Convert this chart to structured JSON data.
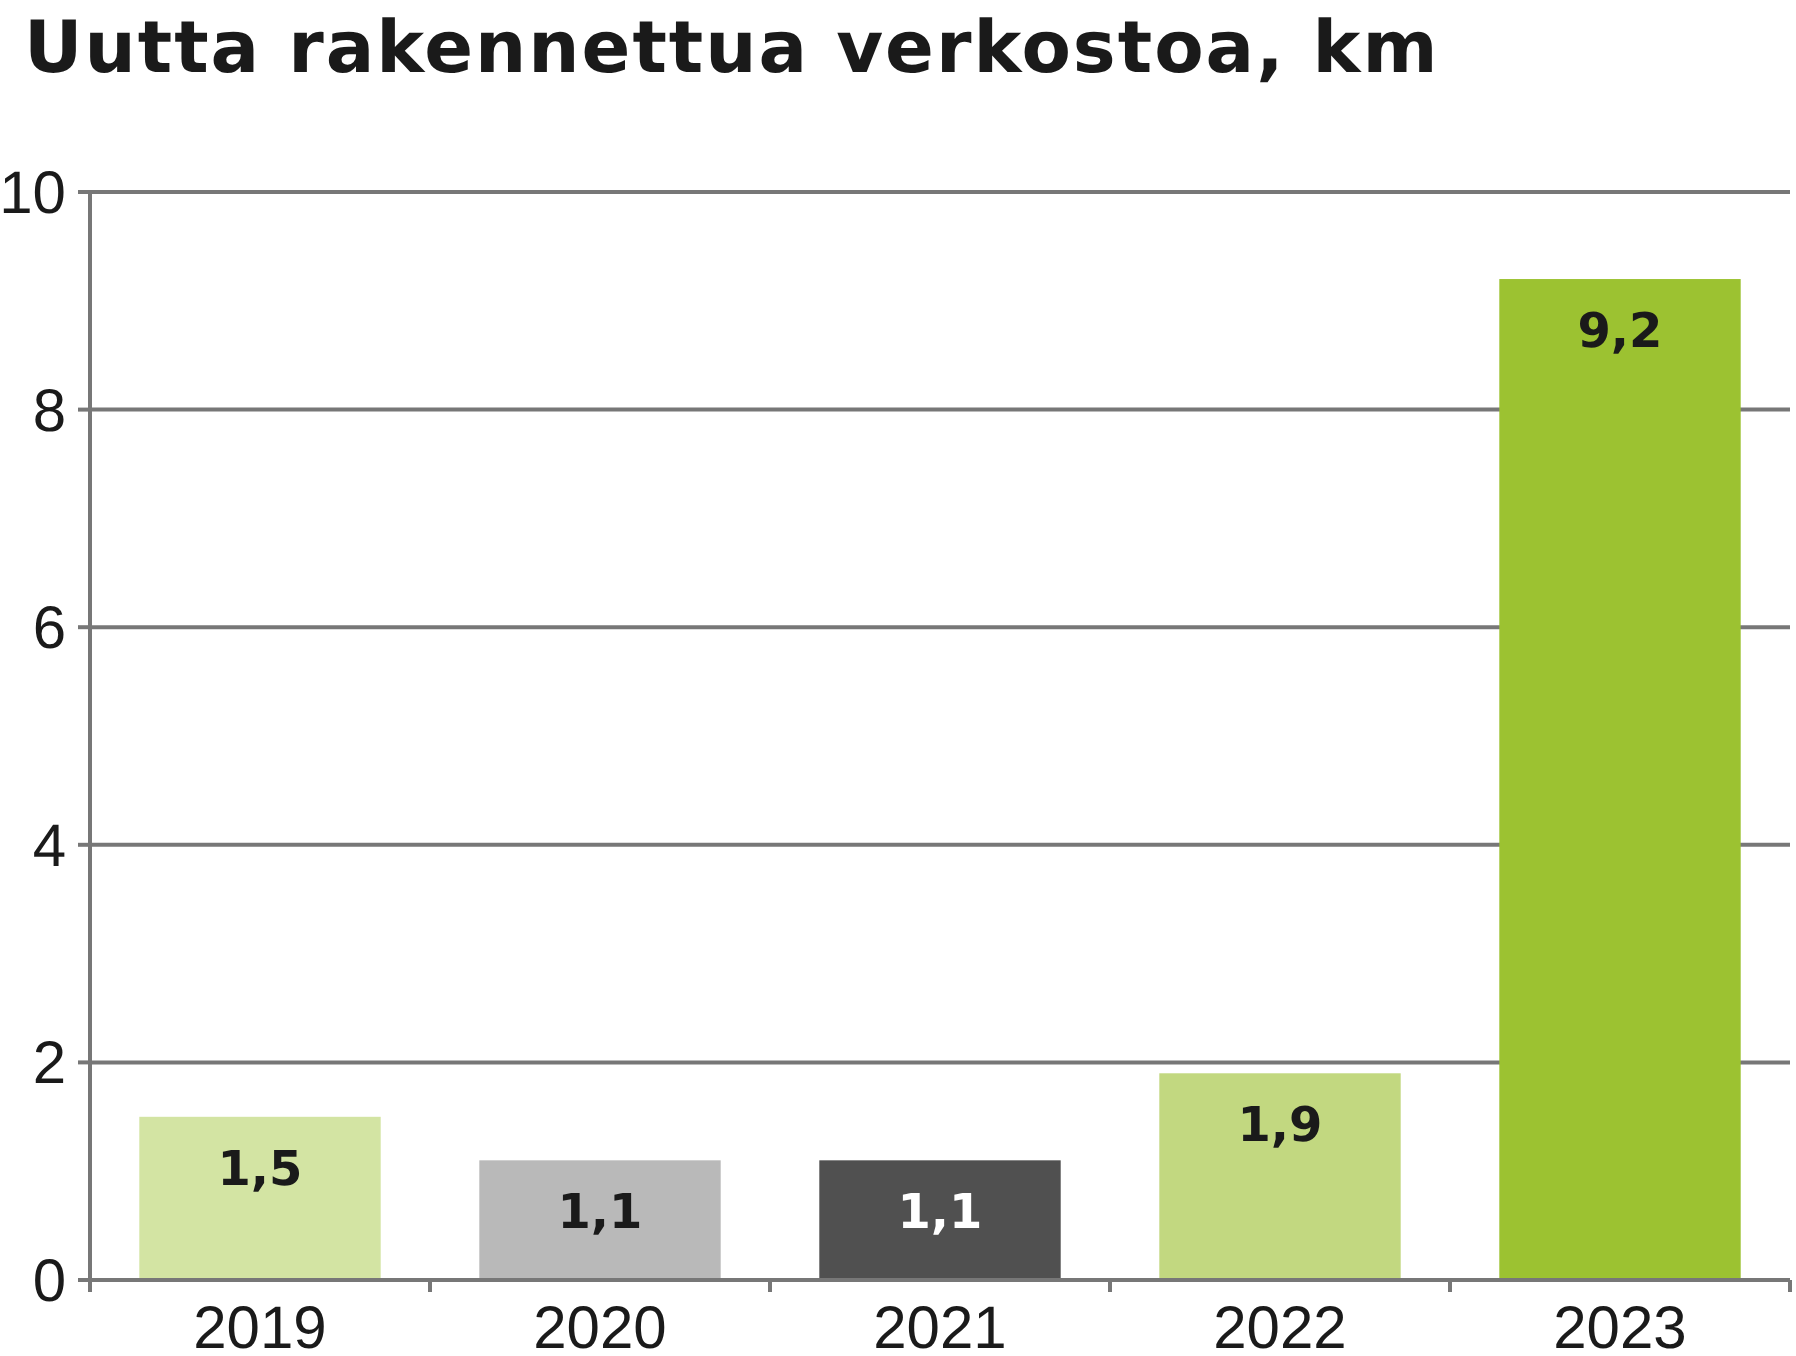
{
  "chart_data": {
    "type": "bar",
    "title": "Uutta rakennettua verkostoa, km",
    "categories": [
      "2019",
      "2020",
      "2021",
      "2022",
      "2023"
    ],
    "values": [
      1.5,
      1.1,
      1.1,
      1.9,
      9.2
    ],
    "colors": [
      "#d3e4a3",
      "#b9b9b9",
      "#505050",
      "#c2d880",
      "#9cc231"
    ],
    "value_labels": [
      "1,5",
      "1,1",
      "1,1",
      "1,9",
      "9,2"
    ],
    "ylim": [
      0,
      10
    ],
    "yticks": [
      0,
      2,
      4,
      6,
      8,
      10
    ],
    "grid": "y"
  }
}
